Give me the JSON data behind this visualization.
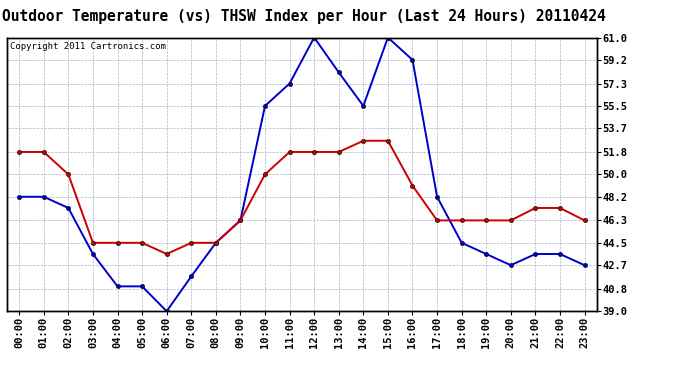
{
  "title": "Outdoor Temperature (vs) THSW Index per Hour (Last 24 Hours) 20110424",
  "copyright": "Copyright 2011 Cartronics.com",
  "hours": [
    "00:00",
    "01:00",
    "02:00",
    "03:00",
    "04:00",
    "05:00",
    "06:00",
    "07:00",
    "08:00",
    "09:00",
    "10:00",
    "11:00",
    "12:00",
    "13:00",
    "14:00",
    "15:00",
    "16:00",
    "17:00",
    "18:00",
    "19:00",
    "20:00",
    "21:00",
    "22:00",
    "23:00"
  ],
  "temp": [
    51.8,
    51.8,
    50.0,
    44.5,
    44.5,
    44.5,
    43.6,
    44.5,
    44.5,
    46.3,
    50.0,
    51.8,
    51.8,
    51.8,
    52.7,
    52.7,
    49.1,
    46.3,
    46.3,
    46.3,
    46.3,
    47.3,
    47.3,
    46.3
  ],
  "thsw": [
    48.2,
    48.2,
    47.3,
    43.6,
    41.0,
    41.0,
    39.0,
    41.8,
    44.5,
    46.3,
    55.5,
    57.3,
    61.0,
    58.2,
    55.5,
    61.0,
    59.2,
    48.2,
    44.5,
    43.6,
    42.7,
    43.6,
    43.6,
    42.7
  ],
  "temp_color": "#cc0000",
  "thsw_color": "#0000cc",
  "background_color": "#ffffff",
  "grid_color": "#b0b0cc",
  "ylim_min": 39.0,
  "ylim_max": 61.0,
  "yticks": [
    39.0,
    40.8,
    42.7,
    44.5,
    46.3,
    48.2,
    50.0,
    51.8,
    53.7,
    55.5,
    57.3,
    59.2,
    61.0
  ],
  "title_fontsize": 10.5,
  "copyright_fontsize": 6.5,
  "tick_fontsize": 7.5,
  "marker_size": 3.0,
  "line_width": 1.4
}
